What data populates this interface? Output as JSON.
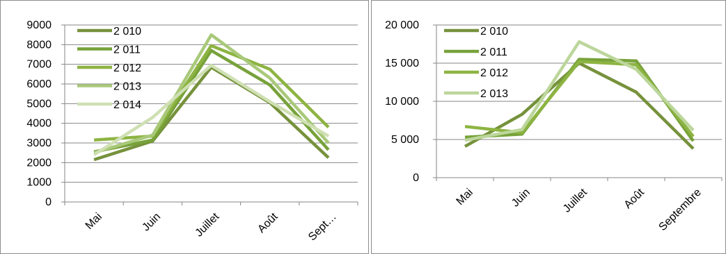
{
  "chart_data": [
    {
      "type": "line",
      "categories": [
        "Mai",
        "Juin",
        "Juillet",
        "Août",
        "Sept…"
      ],
      "ylim": [
        0,
        9000
      ],
      "yticks": [
        "0",
        "1000",
        "2000",
        "3000",
        "4000",
        "5000",
        "6000",
        "7000",
        "8000",
        "9000"
      ],
      "grid": true,
      "legend_position": "top-left",
      "series": [
        {
          "name": "2 010",
          "color": "#76923c",
          "values": [
            2150,
            3100,
            6850,
            5050,
            2250
          ]
        },
        {
          "name": "2 011",
          "color": "#77a23a",
          "values": [
            2550,
            3150,
            7700,
            5950,
            2650
          ]
        },
        {
          "name": "2 012",
          "color": "#8db442",
          "values": [
            3150,
            3350,
            7950,
            6750,
            3800
          ]
        },
        {
          "name": "2 013",
          "color": "#a9c97a",
          "values": [
            2500,
            3400,
            8500,
            6300,
            3000
          ]
        },
        {
          "name": "2 014",
          "color": "#cfe0b3",
          "values": [
            2400,
            4300,
            6950,
            5100,
            3350
          ]
        }
      ]
    },
    {
      "type": "line",
      "categories": [
        "Mai",
        "Juin",
        "Juillet",
        "Août",
        "Septembre"
      ],
      "ylim": [
        0,
        20000
      ],
      "yticks": [
        "0",
        "5 000",
        "10 000",
        "15 000",
        "20 000"
      ],
      "grid": true,
      "legend_position": "top-left",
      "series": [
        {
          "name": "2 010",
          "color": "#76923c",
          "values": [
            4100,
            8300,
            15000,
            11200,
            3800
          ]
        },
        {
          "name": "2 011",
          "color": "#77a23a",
          "values": [
            5300,
            5700,
            15500,
            15300,
            4800
          ]
        },
        {
          "name": "2 012",
          "color": "#8db442",
          "values": [
            6700,
            5900,
            15200,
            14800,
            5400
          ]
        },
        {
          "name": "2 013",
          "color": "#bcd69b",
          "values": [
            4900,
            6300,
            17800,
            14200,
            6200
          ]
        }
      ]
    }
  ]
}
